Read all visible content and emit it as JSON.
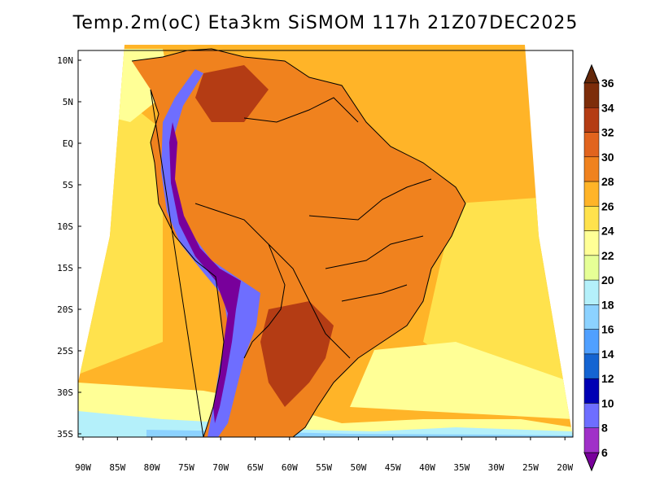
{
  "title": "Temp.2m(oC) Eta3km SiSMOM 117h 21Z07DEC2025",
  "lat_labels": [
    "10N",
    "5N",
    "EQ",
    "5S",
    "10S",
    "15S",
    "20S",
    "25S",
    "30S",
    "35S"
  ],
  "lon_labels": [
    "90W",
    "85W",
    "80W",
    "75W",
    "70W",
    "65W",
    "60W",
    "55W",
    "50W",
    "45W",
    "40W",
    "35W",
    "30W",
    "25W",
    "20W"
  ],
  "colorbar": {
    "labels": [
      "6",
      "8",
      "10",
      "12",
      "14",
      "16",
      "18",
      "20",
      "22",
      "24",
      "26",
      "28",
      "30",
      "32",
      "34",
      "36"
    ],
    "colors": [
      "#78009b",
      "#a030c8",
      "#6e6eff",
      "#0000b4",
      "#1464d2",
      "#50a0ff",
      "#8cd2ff",
      "#b4f0fa",
      "#e6ff96",
      "#ffff96",
      "#ffe24d",
      "#ffb428",
      "#f0821e",
      "#e1641e",
      "#b43c14",
      "#7d2d0a",
      "#64280a"
    ]
  },
  "colors": {
    "ocean_warm": "#ffb428",
    "ocean_mid": "#ffe24d",
    "ocean_cool": "#ffff96",
    "ocean_cold": "#b4f0fa",
    "ocean_colder": "#8cd2ff",
    "land_hot": "#e1641e",
    "land_warm": "#f0821e",
    "land_very_hot": "#b43c14",
    "andes_cold": "#6e6eff",
    "andes_colder": "#78009b",
    "border": "#000000"
  }
}
